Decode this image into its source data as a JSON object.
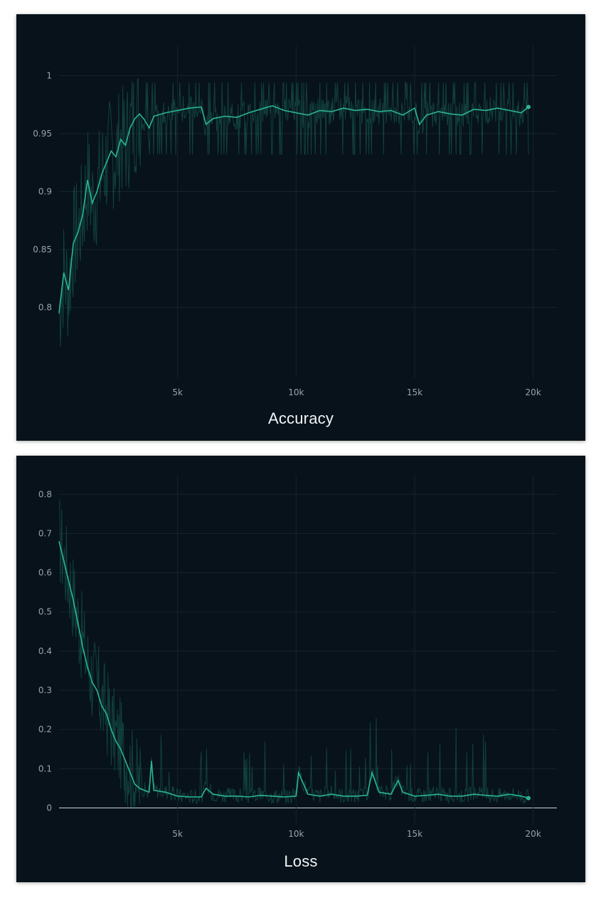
{
  "theme": {
    "panel_bg": "#07121a",
    "grid_color": "#16242c",
    "tick_color": "#98a4aa",
    "title_color": "#f1f5f7",
    "series_color": "#2bb596",
    "raw_color": "#1f7a68"
  },
  "chart_data": [
    {
      "type": "line",
      "title": "Accuracy",
      "xlabel": "",
      "ylabel": "",
      "xlim": [
        0,
        21000
      ],
      "ylim": [
        0.75,
        1.015
      ],
      "x_ticks": [
        5000,
        10000,
        15000,
        20000
      ],
      "x_tick_labels": [
        "5k",
        "10k",
        "15k",
        "20k"
      ],
      "y_ticks": [
        0.8,
        0.85,
        0.9,
        0.95,
        1
      ],
      "y_tick_labels": [
        "0.8",
        "0.85",
        "0.9",
        "0.95",
        "1"
      ],
      "grid": true,
      "series": [
        {
          "x": [
            0,
            200,
            400,
            600,
            800,
            1000,
            1200,
            1400,
            1600,
            1800,
            2000,
            2200,
            2400,
            2600,
            2800,
            3000,
            3200,
            3400,
            3600,
            3800,
            4000,
            4500,
            5000,
            5500,
            6000,
            6200,
            6500,
            7000,
            7500,
            8000,
            8500,
            9000,
            9500,
            10000,
            10500,
            11000,
            11500,
            12000,
            12500,
            13000,
            13500,
            14000,
            14500,
            15000,
            15200,
            15500,
            16000,
            16500,
            17000,
            17500,
            18000,
            18500,
            19000,
            19500,
            19800
          ],
          "y": [
            0.795,
            0.83,
            0.815,
            0.855,
            0.865,
            0.88,
            0.91,
            0.89,
            0.9,
            0.915,
            0.925,
            0.935,
            0.93,
            0.945,
            0.94,
            0.955,
            0.963,
            0.967,
            0.962,
            0.955,
            0.965,
            0.968,
            0.97,
            0.972,
            0.973,
            0.958,
            0.963,
            0.965,
            0.964,
            0.968,
            0.971,
            0.974,
            0.97,
            0.968,
            0.966,
            0.97,
            0.969,
            0.972,
            0.97,
            0.971,
            0.969,
            0.97,
            0.966,
            0.972,
            0.958,
            0.966,
            0.969,
            0.967,
            0.966,
            0.971,
            0.97,
            0.972,
            0.97,
            0.968,
            0.973
          ]
        }
      ]
    },
    {
      "type": "line",
      "title": "Loss",
      "xlabel": "",
      "ylabel": "",
      "xlim": [
        0,
        21000
      ],
      "ylim": [
        -0.01,
        0.815
      ],
      "x_ticks": [
        5000,
        10000,
        15000,
        20000
      ],
      "x_tick_labels": [
        "5k",
        "10k",
        "15k",
        "20k"
      ],
      "y_ticks": [
        0,
        0.1,
        0.2,
        0.3,
        0.4,
        0.5,
        0.6,
        0.7,
        0.8
      ],
      "y_tick_labels": [
        "0",
        "0.1",
        "0.2",
        "0.3",
        "0.4",
        "0.5",
        "0.6",
        "0.7",
        "0.8"
      ],
      "grid": true,
      "series": [
        {
          "x": [
            0,
            200,
            400,
            600,
            800,
            1000,
            1200,
            1400,
            1600,
            1800,
            2000,
            2200,
            2400,
            2600,
            2800,
            3000,
            3200,
            3400,
            3600,
            3800,
            3900,
            4000,
            4500,
            5000,
            5500,
            6000,
            6200,
            6500,
            7000,
            7500,
            8000,
            8500,
            9000,
            9500,
            10000,
            10100,
            10500,
            11000,
            11500,
            12000,
            12500,
            13000,
            13200,
            13500,
            14000,
            14300,
            14500,
            15000,
            15500,
            16000,
            16500,
            17000,
            17500,
            18000,
            18500,
            19000,
            19500,
            19800
          ],
          "y": [
            0.68,
            0.63,
            0.58,
            0.53,
            0.47,
            0.41,
            0.36,
            0.32,
            0.3,
            0.26,
            0.24,
            0.2,
            0.17,
            0.15,
            0.12,
            0.09,
            0.06,
            0.05,
            0.045,
            0.04,
            0.12,
            0.045,
            0.04,
            0.03,
            0.028,
            0.028,
            0.05,
            0.035,
            0.03,
            0.03,
            0.028,
            0.032,
            0.03,
            0.028,
            0.03,
            0.09,
            0.035,
            0.03,
            0.035,
            0.03,
            0.03,
            0.032,
            0.09,
            0.04,
            0.035,
            0.07,
            0.04,
            0.03,
            0.032,
            0.035,
            0.03,
            0.03,
            0.035,
            0.032,
            0.03,
            0.035,
            0.03,
            0.025
          ]
        }
      ]
    }
  ]
}
